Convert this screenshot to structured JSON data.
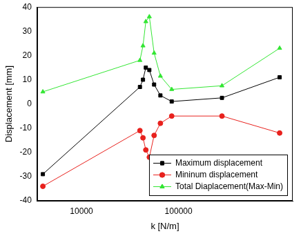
{
  "chart_data": {
    "type": "line",
    "x_label": "k [N/m]",
    "y_label": "Displacement [mm]",
    "log": "x",
    "x": [
      4000,
      40000,
      43000,
      46000,
      50000,
      56000,
      65000,
      85000,
      280000,
      1100000
    ],
    "xlim": [
      3500,
      1500000
    ],
    "xticks": [
      10000,
      100000
    ],
    "ylim": [
      -40,
      40
    ],
    "yticks": [
      -40,
      -30,
      -20,
      -10,
      0,
      10,
      20,
      30,
      40
    ],
    "grid": false,
    "legend": "lower right",
    "series": [
      {
        "name": "Maximum displacement",
        "color": "#000000",
        "marker": "square",
        "values": [
          -29,
          7,
          10,
          15,
          14,
          8,
          3.5,
          1,
          2.5,
          11
        ]
      },
      {
        "name": "Mininum displacement",
        "color": "#e8211d",
        "marker": "circle",
        "values": [
          -34,
          -11,
          -14,
          -19,
          -22,
          -13,
          -8,
          -5,
          -5,
          -12
        ]
      },
      {
        "name": "Total Diaplacement(Max-Min)",
        "color": "#33e633",
        "marker": "triangle",
        "values": [
          5,
          18,
          24,
          34,
          36,
          21,
          11.5,
          6,
          7.5,
          23
        ]
      }
    ]
  }
}
